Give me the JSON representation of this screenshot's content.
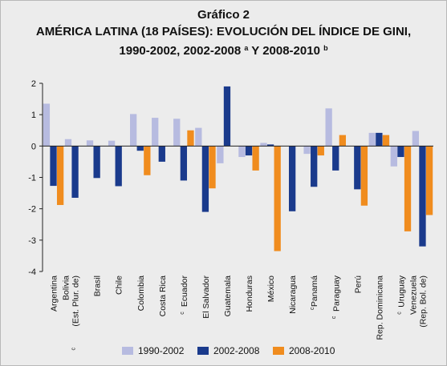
{
  "header": {
    "title_line1": "Gráfico 2",
    "title_line2": "AMÉRICA LATINA (18 PAÍSES): EVOLUCIÓN DEL ÍNDICE DE GINI,",
    "title_line3_part1": "1990-2002, 2002-2008 ",
    "title_line3_sup1": "a",
    "title_line3_part2": " Y 2008-2010 ",
    "title_line3_sup2": "b"
  },
  "colors": {
    "s1": "#b7bbe0",
    "s2": "#1a3a8c",
    "s3": "#f08c1e"
  },
  "chart_data": {
    "type": "bar",
    "title": "AMÉRICA LATINA (18 PAÍSES): EVOLUCIÓN DEL ÍNDICE DE GINI, 1990-2002, 2002-2008 a Y 2008-2010 b",
    "xlabel": "",
    "ylabel": "",
    "ylim": [
      -4,
      2
    ],
    "yticks": [
      "2",
      "1",
      "0",
      "-1",
      "-2",
      "-3",
      "-4"
    ],
    "grid": false,
    "legend": "bottom",
    "categories": [
      {
        "lines": [
          "Argentina"
        ],
        "sup": ""
      },
      {
        "lines": [
          "Bolivia",
          "(Est. Plur. de)"
        ],
        "sup": "c"
      },
      {
        "lines": [
          "Brasil"
        ],
        "sup": ""
      },
      {
        "lines": [
          "Chile"
        ],
        "sup": ""
      },
      {
        "lines": [
          "Colombia"
        ],
        "sup": ""
      },
      {
        "lines": [
          "Costa Rica"
        ],
        "sup": ""
      },
      {
        "lines": [
          "Ecuador"
        ],
        "sup": "c"
      },
      {
        "lines": [
          "El Salvador"
        ],
        "sup": ""
      },
      {
        "lines": [
          "Guatemala"
        ],
        "sup": ""
      },
      {
        "lines": [
          "Honduras"
        ],
        "sup": ""
      },
      {
        "lines": [
          "México"
        ],
        "sup": ""
      },
      {
        "lines": [
          "Nicaragua"
        ],
        "sup": ""
      },
      {
        "lines": [
          "Panamá"
        ],
        "sup": "c"
      },
      {
        "lines": [
          "Paraguay"
        ],
        "sup": "c"
      },
      {
        "lines": [
          "Perú"
        ],
        "sup": ""
      },
      {
        "lines": [
          "Rep. Dominicana"
        ],
        "sup": ""
      },
      {
        "lines": [
          "Uruguay"
        ],
        "sup": "c"
      },
      {
        "lines": [
          "Venezuela",
          "(Rep. Bol. de)"
        ],
        "sup": ""
      }
    ],
    "series": [
      {
        "name": "1990-2002",
        "values": [
          1.35,
          0.22,
          0.18,
          0.17,
          1.02,
          0.9,
          0.87,
          0.58,
          -0.55,
          -0.35,
          0.1,
          null,
          -0.25,
          1.2,
          null,
          0.42,
          -0.65,
          0.48
        ]
      },
      {
        "name": "2002-2008",
        "values": [
          -1.27,
          -1.65,
          -1.02,
          -1.28,
          -0.15,
          -0.5,
          -1.1,
          -2.1,
          1.9,
          -0.3,
          0.05,
          -2.08,
          -1.3,
          -0.78,
          -1.38,
          0.42,
          -0.35,
          -3.2
        ]
      },
      {
        "name": "2008-2010",
        "values": [
          -1.88,
          null,
          null,
          null,
          -0.93,
          null,
          0.5,
          -1.35,
          null,
          -0.78,
          -3.35,
          null,
          -0.3,
          0.35,
          -1.9,
          0.35,
          -2.72,
          -2.2
        ]
      }
    ]
  }
}
